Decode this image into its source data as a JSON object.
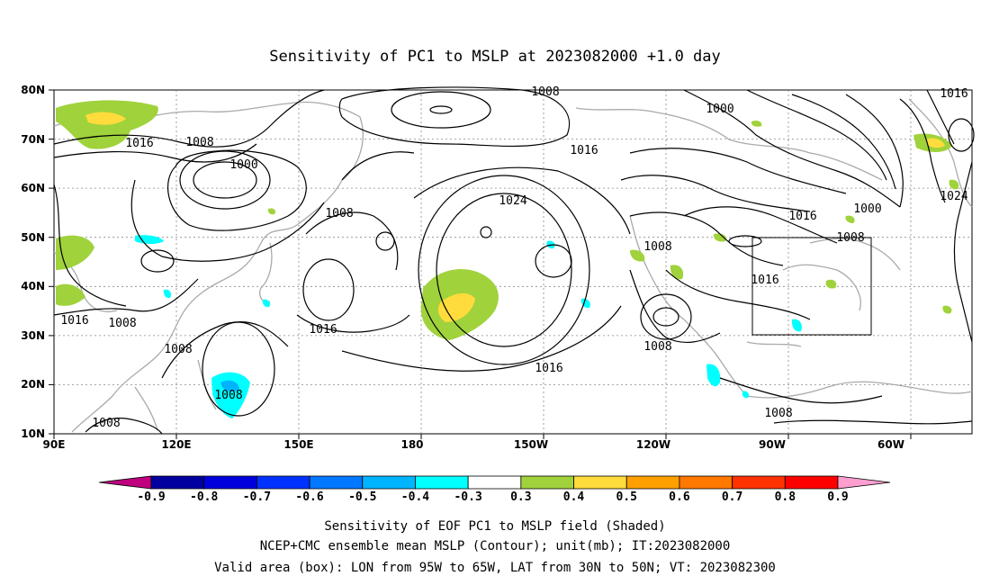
{
  "title": "Sensitivity of PC1 to MSLP at 2023082000 +1.0 day",
  "map": {
    "lon_labels": [
      "90E",
      "120E",
      "150E",
      "180",
      "150W",
      "120W",
      "90W",
      "60W"
    ],
    "lat_labels": [
      "80N",
      "70N",
      "60N",
      "50N",
      "40N",
      "30N",
      "20N",
      "10N"
    ],
    "contour_labels": [
      "1008",
      "1016",
      "1016",
      "1008",
      "1000",
      "1008",
      "1016",
      "1008",
      "1008",
      "1016",
      "1024",
      "1016",
      "1000",
      "1016",
      "1000",
      "1008",
      "1016",
      "1024",
      "1008",
      "1008",
      "1016",
      "1008",
      "1008",
      "1008"
    ],
    "land_color": "#aaaaaa",
    "contour_color": "#000000",
    "valid_box": {
      "lon": [
        "95W",
        "65W"
      ],
      "lat": [
        "30N",
        "50N"
      ]
    }
  },
  "colorbar": {
    "labels": [
      "-0.9",
      "-0.8",
      "-0.7",
      "-0.6",
      "-0.5",
      "-0.4",
      "-0.3",
      "0.3",
      "0.4",
      "0.5",
      "0.6",
      "0.7",
      "0.8",
      "0.9"
    ],
    "colors": [
      "#c0007f",
      "#0000a0",
      "#0000dc",
      "#0032ff",
      "#0078ff",
      "#00b4ff",
      "#00ffff",
      "#ffffff",
      "#a0d23c",
      "#ffdc3c",
      "#ffa000",
      "#ff7800",
      "#ff3200",
      "#ff0000",
      "#ff9fd0"
    ]
  },
  "footer": {
    "line1": "Sensitivity of EOF PC1 to MSLP field (Shaded)",
    "line2": "NCEP+CMC ensemble mean MSLP (Contour); unit(mb); IT:2023082000",
    "line3": "Valid area (box): LON from 95W to 65W, LAT from 30N to 50N; VT: 2023082300"
  }
}
